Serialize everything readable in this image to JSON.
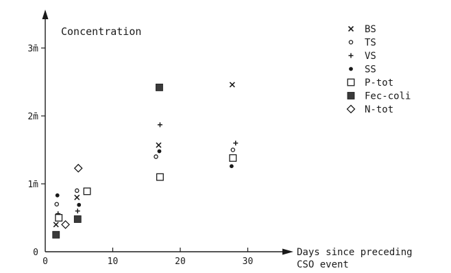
{
  "chart_data": {
    "type": "scatter",
    "title": "Concentration",
    "xlabel_lines": [
      "Days since preceding",
      "CSO event"
    ],
    "ylabel": "",
    "xlim": [
      0,
      37
    ],
    "ylim": [
      0,
      3.55
    ],
    "xticks": [
      0,
      10,
      20,
      30
    ],
    "xtick_labels": [
      "0",
      "10",
      "20",
      "30"
    ],
    "yticks": [
      0,
      1,
      2,
      3
    ],
    "ytick_labels": [
      "0",
      "1m̄",
      "2m̄",
      "3m̄"
    ],
    "grid": false,
    "legend_position": "top-right",
    "series": [
      {
        "name": "BS",
        "marker": "x",
        "points": [
          {
            "x": 1.6,
            "y": 0.4
          },
          {
            "x": 4.7,
            "y": 0.8
          },
          {
            "x": 16.8,
            "y": 1.57
          },
          {
            "x": 27.7,
            "y": 2.46
          }
        ]
      },
      {
        "name": "TS",
        "marker": "circle-open",
        "points": [
          {
            "x": 1.7,
            "y": 0.7
          },
          {
            "x": 4.7,
            "y": 0.9
          },
          {
            "x": 16.4,
            "y": 1.4
          },
          {
            "x": 27.8,
            "y": 1.5
          }
        ]
      },
      {
        "name": "VS",
        "marker": "plus",
        "points": [
          {
            "x": 1.9,
            "y": 0.56
          },
          {
            "x": 4.8,
            "y": 0.6
          },
          {
            "x": 17.0,
            "y": 1.87
          },
          {
            "x": 28.2,
            "y": 1.6
          }
        ]
      },
      {
        "name": "SS",
        "marker": "dot",
        "points": [
          {
            "x": 1.8,
            "y": 0.83
          },
          {
            "x": 5.0,
            "y": 0.69
          },
          {
            "x": 16.9,
            "y": 1.48
          },
          {
            "x": 27.6,
            "y": 1.26
          }
        ]
      },
      {
        "name": "P-tot",
        "marker": "square-open",
        "points": [
          {
            "x": 2.0,
            "y": 0.5
          },
          {
            "x": 6.2,
            "y": 0.89
          },
          {
            "x": 17.0,
            "y": 1.1
          },
          {
            "x": 27.8,
            "y": 1.38
          }
        ]
      },
      {
        "name": "Fec-coli",
        "marker": "square-filled",
        "points": [
          {
            "x": 1.6,
            "y": 0.25
          },
          {
            "x": 4.8,
            "y": 0.48
          },
          {
            "x": 16.9,
            "y": 2.42
          }
        ]
      },
      {
        "name": "N-tot",
        "marker": "diamond-open",
        "points": [
          {
            "x": 3.0,
            "y": 0.4
          },
          {
            "x": 4.9,
            "y": 1.23
          }
        ]
      }
    ]
  }
}
